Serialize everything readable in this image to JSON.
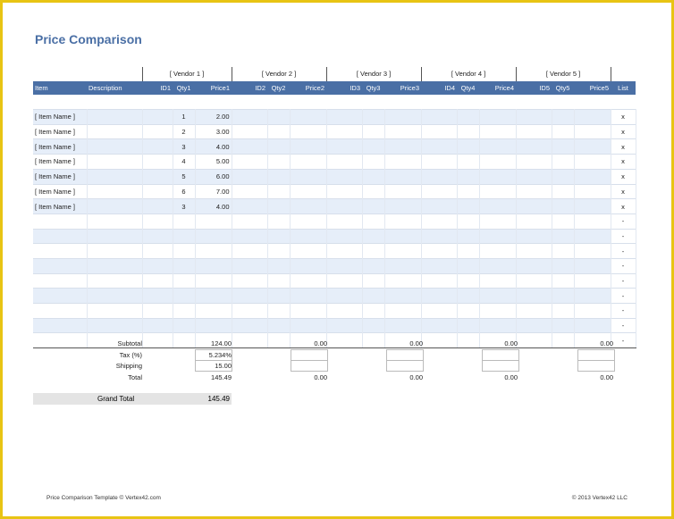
{
  "title": "Price Comparison",
  "vendors": [
    "[ Vendor 1 ]",
    "[ Vendor 2 ]",
    "[ Vendor 3 ]",
    "[ Vendor 4 ]",
    "[ Vendor 5 ]"
  ],
  "headers": {
    "item": "Item",
    "description": "Description",
    "v1": [
      "ID1",
      "Qty1",
      "Price1"
    ],
    "v2": [
      "ID2",
      "Qty2",
      "Price2"
    ],
    "v3": [
      "ID3",
      "Qty3",
      "Price3"
    ],
    "v4": [
      "ID4",
      "Qty4",
      "Price4"
    ],
    "v5": [
      "ID5",
      "Qty5",
      "Price5"
    ],
    "list": "List"
  },
  "rows": [
    {
      "item": "[ Item Name ]",
      "qty1": "1",
      "price1": "2.00",
      "list": "x"
    },
    {
      "item": "[ Item Name ]",
      "qty1": "2",
      "price1": "3.00",
      "list": "x"
    },
    {
      "item": "[ Item Name ]",
      "qty1": "3",
      "price1": "4.00",
      "list": "x"
    },
    {
      "item": "[ Item Name ]",
      "qty1": "4",
      "price1": "5.00",
      "list": "x"
    },
    {
      "item": "[ Item Name ]",
      "qty1": "5",
      "price1": "6.00",
      "list": "x"
    },
    {
      "item": "[ Item Name ]",
      "qty1": "6",
      "price1": "7.00",
      "list": "x"
    },
    {
      "item": "[ Item Name ]",
      "qty1": "3",
      "price1": "4.00",
      "list": "x"
    },
    {
      "item": "",
      "qty1": "",
      "price1": "",
      "list": "-"
    },
    {
      "item": "",
      "qty1": "",
      "price1": "",
      "list": "-"
    },
    {
      "item": "",
      "qty1": "",
      "price1": "",
      "list": "-"
    },
    {
      "item": "",
      "qty1": "",
      "price1": "",
      "list": "-"
    },
    {
      "item": "",
      "qty1": "",
      "price1": "",
      "list": "-"
    },
    {
      "item": "",
      "qty1": "",
      "price1": "",
      "list": "-"
    },
    {
      "item": "",
      "qty1": "",
      "price1": "",
      "list": "-"
    },
    {
      "item": "",
      "qty1": "",
      "price1": "",
      "list": "-"
    },
    {
      "item": "",
      "qty1": "",
      "price1": "",
      "list": "-"
    }
  ],
  "summary": {
    "labels": {
      "subtotal": "Subtotal",
      "tax": "Tax (%)",
      "shipping": "Shipping",
      "total": "Total"
    },
    "v1": {
      "subtotal": "124.00",
      "tax": "5.234%",
      "shipping": "15.00",
      "total": "145.49"
    },
    "v2": {
      "subtotal": "0.00",
      "total": "0.00"
    },
    "v3": {
      "subtotal": "0.00",
      "total": "0.00"
    },
    "v4": {
      "subtotal": "0.00",
      "total": "0.00"
    },
    "v5": {
      "subtotal": "0.00",
      "total": "0.00"
    }
  },
  "grand_total": {
    "label": "Grand Total",
    "value": "145.49"
  },
  "footer": {
    "left": "Price Comparison Template © Vertex42.com",
    "right": "© 2013 Vertex42 LLC"
  },
  "colors": {
    "header_blue": "#4a6fa5",
    "row_tint": "#e6eef9",
    "frame_yellow": "#e8c414"
  }
}
